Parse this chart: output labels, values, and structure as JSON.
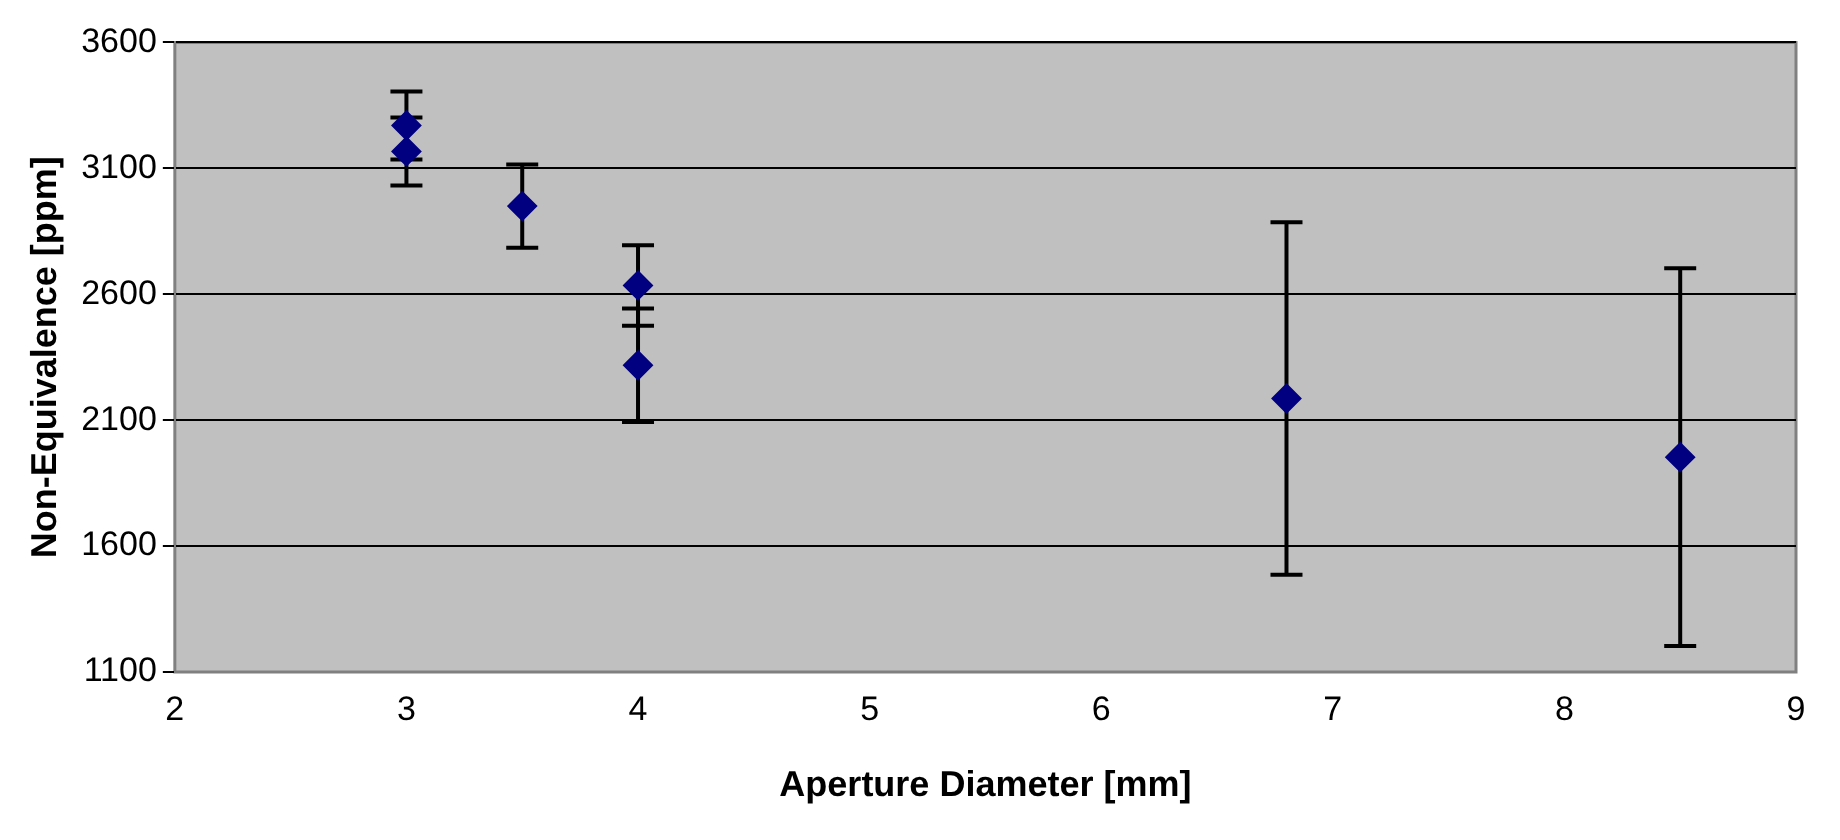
{
  "chart_data": {
    "type": "scatter",
    "xlabel": "Aperture Diameter [mm]",
    "ylabel": "Non-Equivalence [ppm]",
    "x": [
      3,
      3,
      3.5,
      4,
      4,
      6.8,
      8.5
    ],
    "series": [
      {
        "color": "#000080",
        "values": [
          3270,
          3167,
          2950,
          2635,
          2318,
          2186,
          1953
        ],
        "errors": [
          135,
          135,
          165,
          160,
          225,
          700,
          750
        ]
      }
    ],
    "xlim": [
      2,
      9
    ],
    "xticks": [
      2,
      3,
      4,
      5,
      6,
      7,
      8,
      9
    ],
    "ylim": [
      1100,
      3600
    ],
    "yticks": [
      1100,
      1600,
      2100,
      2600,
      3100,
      3600
    ],
    "grid": "y",
    "legend": false,
    "marker": "diamond"
  }
}
